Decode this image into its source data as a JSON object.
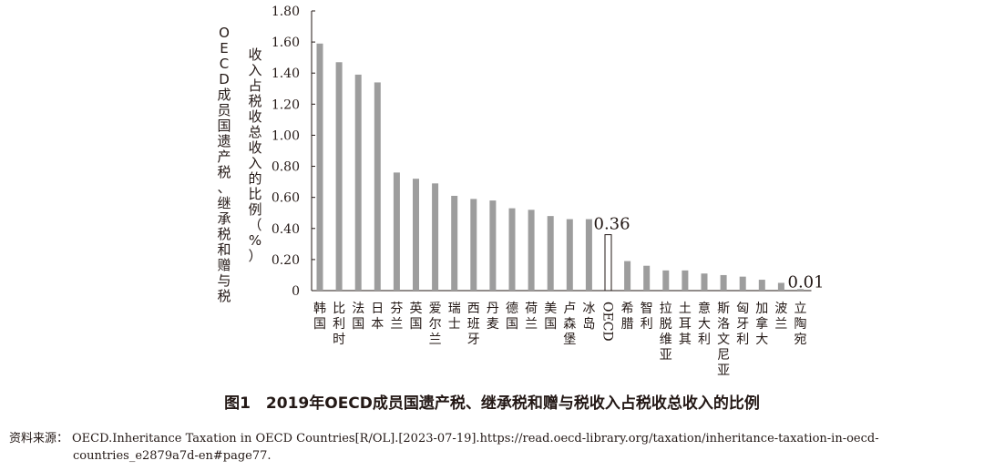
{
  "chart_data": {
    "type": "bar",
    "ylabel_outer": "OECD成员国遗产税、继承税和赠与税",
    "ylabel_inner": "收入占税收总收入的比例（%）",
    "ylim": [
      0,
      1.8
    ],
    "yticks": [
      "1.80",
      "1.60",
      "1.40",
      "1.20",
      "1.00",
      "0.80",
      "0.60",
      "0.40",
      "0.20",
      "0"
    ],
    "categories": [
      "韩国",
      "比利时",
      "法国",
      "日本",
      "芬兰",
      "英国",
      "爱尔兰",
      "瑞士",
      "西班牙",
      "丹麦",
      "德国",
      "荷兰",
      "美国",
      "卢森堡",
      "冰岛",
      "OECD",
      "希腊",
      "智利",
      "拉脱维亚",
      "土耳其",
      "意大利",
      "斯洛文尼亚",
      "匈牙利",
      "加拿大",
      "波兰",
      "立陶宛"
    ],
    "values": [
      1.59,
      1.47,
      1.39,
      1.34,
      0.76,
      0.72,
      0.69,
      0.61,
      0.59,
      0.58,
      0.53,
      0.52,
      0.48,
      0.46,
      0.46,
      0.36,
      0.19,
      0.16,
      0.13,
      0.13,
      0.11,
      0.1,
      0.09,
      0.07,
      0.05,
      0.01
    ],
    "highlight": "OECD",
    "data_labels": [
      {
        "category": "OECD",
        "text": "0.36"
      },
      {
        "category": "立陶宛",
        "text": "0.01"
      }
    ],
    "bar_color": "#9d9d9d",
    "highlight_color": "#ffffff",
    "grid": false
  },
  "figure_title": "图1　2019年OECD成员国遗产税、继承税和赠与税收入占税收总收入的比例",
  "source": {
    "label": "资料来源：",
    "text": "OECD.Inheritance Taxation in OECD Countries[R/OL].[2023-07-19].https://read.oecd-library.org/taxation/inheritance-taxation-in-oecd-countries_e2879a7d-en#page77."
  }
}
